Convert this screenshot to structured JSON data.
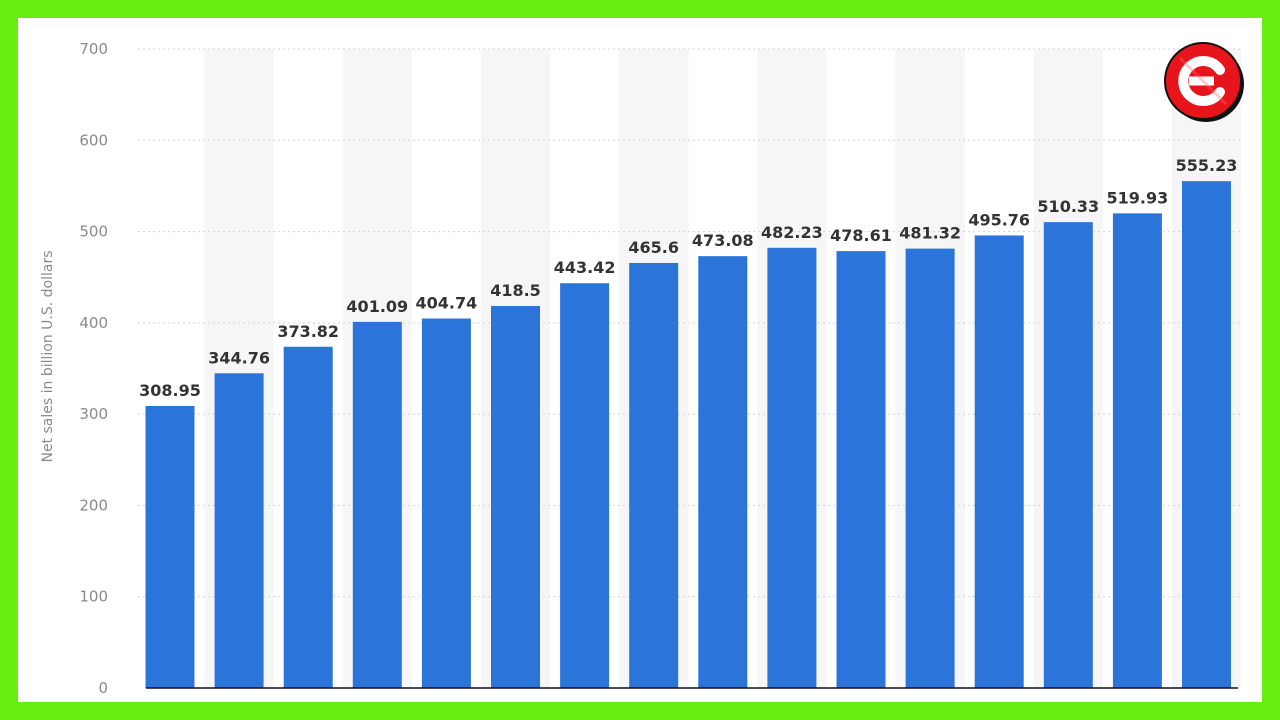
{
  "chart_data": {
    "type": "bar",
    "categories": [
      "",
      "",
      "",
      "",
      "",
      "",
      "",
      "",
      "",
      "",
      "",
      "",
      "",
      "",
      "",
      ""
    ],
    "values": [
      308.95,
      344.76,
      373.82,
      401.09,
      404.74,
      418.5,
      443.42,
      465.6,
      473.08,
      482.23,
      478.61,
      481.32,
      495.76,
      510.33,
      519.93,
      555.23
    ],
    "data_labels": [
      "308.95",
      "344.76",
      "373.82",
      "401.09",
      "404.74",
      "418.5",
      "443.42",
      "465.6",
      "473.08",
      "482.23",
      "478.61",
      "481.32",
      "495.76",
      "510.33",
      "519.93",
      "555.23"
    ],
    "title": "",
    "xlabel": "",
    "ylabel": "Net sales in billion U.S. dollars",
    "ylim": [
      0,
      700
    ],
    "yticks": [
      "0",
      "100",
      "200",
      "300",
      "400",
      "500",
      "600",
      "700"
    ],
    "grid": true,
    "bar_color": "#2b74d9"
  },
  "colors": {
    "frame_border": "#66ee11",
    "logo_red": "#e8141b"
  },
  "logo": {
    "icon": "brand-logo-icon"
  }
}
